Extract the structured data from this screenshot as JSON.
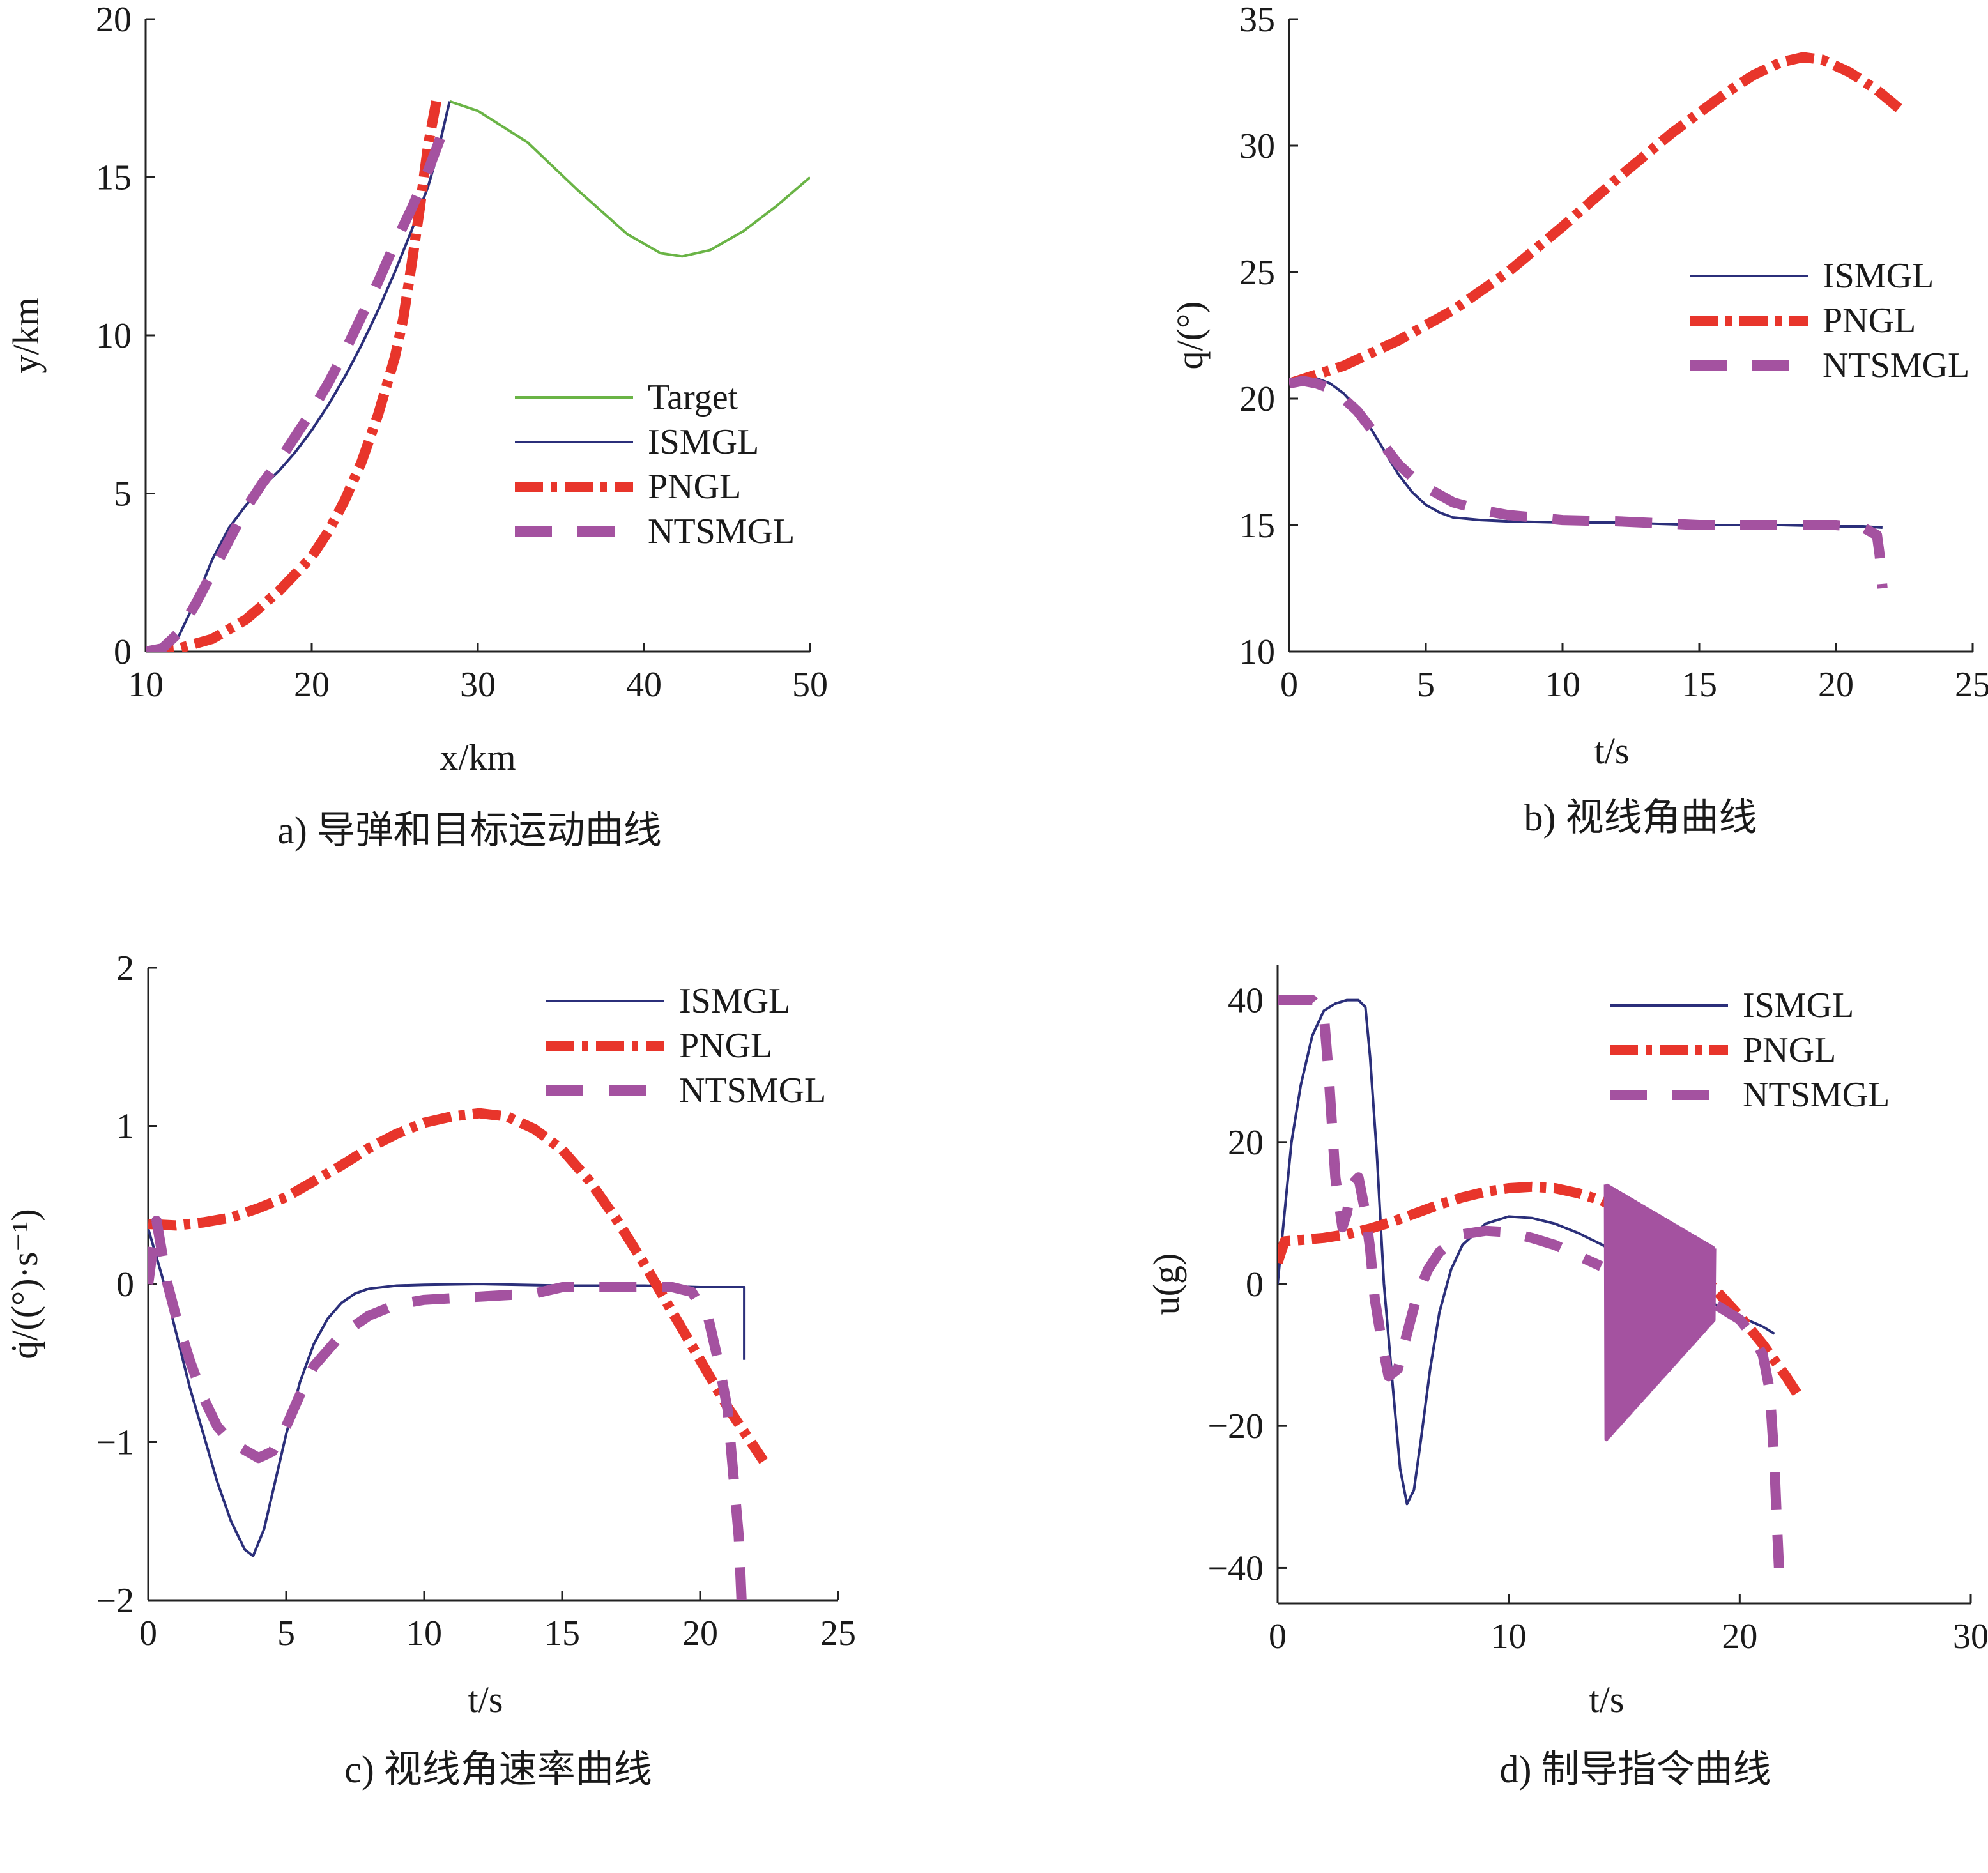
{
  "chart_data": [
    {
      "type": "line",
      "caption": "a) 导弹和目标运动曲线",
      "xlabel": "x/km",
      "ylabel": "y/km",
      "xlim": [
        10,
        50
      ],
      "ylim": [
        0,
        20
      ],
      "xticks": [
        "10",
        "20",
        "30",
        "40",
        "50"
      ],
      "yticks": [
        "0",
        "5",
        "10",
        "15",
        "20"
      ],
      "legend_position": "center-right",
      "series": [
        {
          "name": "Target",
          "color": "#6ab446",
          "style": "solid",
          "x": [
            28.3,
            30,
            33,
            36,
            39,
            41,
            42.3,
            44,
            46,
            48,
            50
          ],
          "y": [
            17.4,
            17.1,
            16.1,
            14.6,
            13.2,
            12.6,
            12.5,
            12.7,
            13.3,
            14.1,
            15.0
          ]
        },
        {
          "name": "ISMGL",
          "color": "#2b2f7a",
          "style": "solid",
          "x": [
            10,
            11,
            12,
            13,
            14,
            15,
            16,
            17,
            18,
            19,
            20,
            21,
            22,
            23,
            24,
            25,
            26,
            27,
            27.5,
            28.3
          ],
          "y": [
            0,
            0.1,
            0.5,
            1.6,
            2.9,
            3.9,
            4.6,
            5.2,
            5.7,
            6.3,
            7.0,
            7.8,
            8.7,
            9.7,
            10.8,
            12.0,
            13.3,
            14.7,
            15.6,
            17.4
          ]
        },
        {
          "name": "PNGL",
          "color": "#e8352b",
          "style": "dashdot",
          "x": [
            10,
            12,
            14,
            16,
            18,
            20,
            21,
            22,
            23,
            24,
            25,
            25.5,
            26,
            26.5,
            27,
            27.5
          ],
          "y": [
            0,
            0.1,
            0.4,
            1.0,
            1.9,
            3.0,
            3.8,
            4.8,
            6.0,
            7.5,
            9.3,
            10.5,
            12.2,
            14.0,
            16.0,
            17.4
          ]
        },
        {
          "name": "NTSMGL",
          "color": "#a452a0",
          "style": "dashed",
          "x": [
            10,
            11,
            12,
            13,
            14,
            15,
            16,
            17,
            18,
            19,
            20,
            21,
            22,
            23,
            24,
            25,
            26,
            27,
            28
          ],
          "y": [
            0,
            0.1,
            0.6,
            1.5,
            2.5,
            3.5,
            4.5,
            5.3,
            6.0,
            6.8,
            7.6,
            8.5,
            9.5,
            10.6,
            11.7,
            12.9,
            14.0,
            15.2,
            16.6
          ]
        }
      ]
    },
    {
      "type": "line",
      "caption": "b) 视线角曲线",
      "xlabel": "t/s",
      "ylabel": "q/(°)",
      "xlim": [
        0,
        25
      ],
      "ylim": [
        10,
        35
      ],
      "xticks": [
        "0",
        "5",
        "10",
        "15",
        "20",
        "25"
      ],
      "yticks": [
        "10",
        "15",
        "20",
        "25",
        "30",
        "35"
      ],
      "legend_position": "center-right",
      "series": [
        {
          "name": "ISMGL",
          "color": "#2b2f7a",
          "style": "solid",
          "x": [
            0,
            0.5,
            1,
            1.5,
            2,
            2.5,
            3,
            3.5,
            4,
            4.5,
            5,
            5.5,
            6,
            7,
            8,
            10,
            12,
            15,
            18,
            20,
            21,
            21.7
          ],
          "y": [
            20.6,
            20.75,
            20.8,
            20.6,
            20.2,
            19.6,
            18.8,
            17.9,
            17.0,
            16.3,
            15.8,
            15.5,
            15.3,
            15.2,
            15.15,
            15.1,
            15.1,
            15.0,
            15.0,
            14.95,
            14.95,
            14.9
          ]
        },
        {
          "name": "PNGL",
          "color": "#e8352b",
          "style": "dashdot",
          "x": [
            0,
            2,
            4,
            6,
            8,
            10,
            12,
            14,
            16,
            17,
            18,
            18.8,
            19.5,
            20.5,
            21.5,
            22.5
          ],
          "y": [
            20.6,
            21.3,
            22.3,
            23.5,
            25.0,
            26.8,
            28.7,
            30.5,
            32.1,
            32.8,
            33.3,
            33.5,
            33.4,
            32.9,
            32.2,
            31.3
          ]
        },
        {
          "name": "NTSMGL",
          "color": "#a452a0",
          "style": "dashed",
          "x": [
            0,
            0.5,
            1,
            1.5,
            2,
            2.5,
            3,
            3.5,
            4,
            4.5,
            5,
            6,
            7,
            8,
            10,
            12,
            15,
            18,
            20,
            21,
            21.5,
            21.6,
            21.7
          ],
          "y": [
            20.6,
            20.7,
            20.6,
            20.4,
            20.0,
            19.5,
            18.8,
            18.1,
            17.4,
            16.9,
            16.5,
            15.9,
            15.6,
            15.4,
            15.2,
            15.15,
            15.0,
            15.0,
            15.0,
            14.9,
            14.6,
            13.8,
            12.5
          ]
        }
      ]
    },
    {
      "type": "line",
      "caption": "c) 视线角速率曲线",
      "xlabel": "t/s",
      "ylabel": "q̇/((°)·s⁻¹)",
      "xlim": [
        0,
        25
      ],
      "ylim": [
        -2,
        2
      ],
      "xticks": [
        "0",
        "5",
        "10",
        "15",
        "20",
        "25"
      ],
      "yticks": [
        "−2",
        "−1",
        "0",
        "1",
        "2"
      ],
      "legend_position": "top-right",
      "series": [
        {
          "name": "ISMGL",
          "color": "#2b2f7a",
          "style": "solid",
          "x": [
            0,
            0.5,
            1,
            1.5,
            2,
            2.5,
            3,
            3.5,
            3.8,
            4.2,
            4.6,
            5,
            5.5,
            6,
            6.5,
            7,
            7.5,
            8,
            9,
            10,
            12,
            15,
            18,
            20,
            21.3,
            21.6,
            21.6
          ],
          "y": [
            0.35,
            0.05,
            -0.3,
            -0.65,
            -0.95,
            -1.25,
            -1.5,
            -1.68,
            -1.72,
            -1.55,
            -1.25,
            -0.95,
            -0.62,
            -0.38,
            -0.22,
            -0.12,
            -0.06,
            -0.03,
            -0.01,
            -0.005,
            0,
            -0.01,
            -0.01,
            -0.02,
            -0.02,
            -0.02,
            -0.48
          ]
        },
        {
          "name": "PNGL",
          "color": "#e8352b",
          "style": "dashdot",
          "x": [
            0,
            1,
            2,
            3,
            4,
            5,
            6,
            7,
            8,
            9,
            10,
            11,
            12,
            13,
            14,
            15,
            16,
            17,
            18,
            19,
            20,
            21,
            22.3
          ],
          "y": [
            0.38,
            0.37,
            0.39,
            0.42,
            0.48,
            0.55,
            0.65,
            0.75,
            0.86,
            0.95,
            1.02,
            1.06,
            1.08,
            1.06,
            0.98,
            0.85,
            0.65,
            0.4,
            0.12,
            -0.18,
            -0.48,
            -0.78,
            -1.12
          ]
        },
        {
          "name": "NTSMGL",
          "color": "#a452a0",
          "style": "dashed",
          "x": [
            0,
            0.3,
            0.7,
            1,
            1.5,
            2,
            2.5,
            3,
            3.5,
            4,
            4.5,
            5,
            5.5,
            6,
            7,
            8,
            9,
            10,
            12,
            14,
            15,
            17,
            19,
            19.7,
            20.3,
            20.7,
            21,
            21.2,
            21.4,
            21.5
          ],
          "y": [
            0.0,
            0.4,
            0.0,
            -0.2,
            -0.48,
            -0.72,
            -0.9,
            -1.0,
            -1.05,
            -1.1,
            -1.06,
            -0.9,
            -0.7,
            -0.52,
            -0.32,
            -0.2,
            -0.13,
            -0.1,
            -0.08,
            -0.06,
            -0.02,
            -0.02,
            -0.02,
            -0.05,
            -0.22,
            -0.52,
            -0.8,
            -1.2,
            -1.6,
            -2.0
          ]
        }
      ]
    },
    {
      "type": "line",
      "caption": "d) 制导指令曲线",
      "xlabel": "t/s",
      "ylabel": "u(g)",
      "xlim": [
        0,
        30
      ],
      "ylim": [
        -45,
        45
      ],
      "xticks": [
        "0",
        "10",
        "20",
        "30"
      ],
      "yticks": [
        "−40",
        "−20",
        "0",
        "20",
        "40"
      ],
      "legend_position": "top-right",
      "series": [
        {
          "name": "ISMGL",
          "color": "#2b2f7a",
          "style": "solid",
          "x": [
            0,
            0.3,
            0.6,
            1,
            1.5,
            2,
            2.5,
            3,
            3.5,
            3.8,
            4,
            4.3,
            4.6,
            5,
            5.3,
            5.6,
            5.9,
            6.2,
            6.6,
            7,
            7.5,
            8,
            9,
            10,
            11,
            12,
            13,
            14,
            15,
            16,
            17,
            18,
            19,
            20,
            21,
            21.5
          ],
          "y": [
            0,
            10,
            20,
            28,
            35,
            38.5,
            39.5,
            40,
            40,
            39,
            32,
            18,
            0,
            -15,
            -26,
            -31,
            -29,
            -22,
            -12,
            -4,
            2,
            5.5,
            8.5,
            9.5,
            9.3,
            8.5,
            7.2,
            5.6,
            3.8,
            2,
            0.2,
            -1.5,
            -3,
            -4.6,
            -6,
            -7
          ]
        },
        {
          "name": "PNGL",
          "color": "#e8352b",
          "style": "dashdot",
          "x": [
            0,
            0.3,
            1,
            2,
            3,
            4,
            5,
            6,
            7,
            8,
            9,
            10,
            11,
            12,
            13,
            14,
            15,
            16,
            17,
            18,
            19,
            20,
            21,
            22,
            22.6
          ],
          "y": [
            3,
            6,
            6.2,
            6.5,
            7,
            7.8,
            8.8,
            10,
            11.2,
            12.2,
            13,
            13.5,
            13.7,
            13.5,
            12.8,
            11.8,
            10.2,
            8,
            5.5,
            2.5,
            -1,
            -4.5,
            -8.5,
            -13,
            -16
          ]
        },
        {
          "name": "NTSMGL",
          "color": "#a452a0",
          "style": "dashed",
          "x": [
            0,
            1,
            1.5,
            2,
            2.2,
            2.5,
            2.8,
            3,
            3.2,
            3.5,
            3.8,
            4,
            4.2,
            4.5,
            4.8,
            5.2,
            5.6,
            6,
            6.5,
            7,
            8,
            9,
            10,
            11,
            12,
            13,
            14
          ],
          "y": [
            40,
            40,
            40,
            38,
            30,
            15,
            8,
            10,
            14,
            15,
            10,
            5,
            -2,
            -8,
            -13,
            -12,
            -7,
            -2,
            2,
            4.5,
            7,
            7.5,
            7.3,
            6.5,
            5.5,
            4,
            2.5
          ]
        },
        {
          "name": "NTSMGL",
          "color": "#a452a0",
          "style": "dashed",
          "x": [
            19,
            19.5,
            20,
            20.5,
            21,
            21.3,
            21.5,
            21.6,
            21.7
          ],
          "y": [
            -3,
            -4,
            -5,
            -7,
            -10,
            -15,
            -25,
            -33,
            -40
          ]
        },
        {
          "name": "NTSMGL",
          "color": "#a452a0",
          "style": "chatter",
          "t_start": 14.2,
          "t_end": 18.9,
          "upper": [
            14,
            5
          ],
          "lower": [
            -22,
            -5
          ]
        }
      ]
    }
  ]
}
